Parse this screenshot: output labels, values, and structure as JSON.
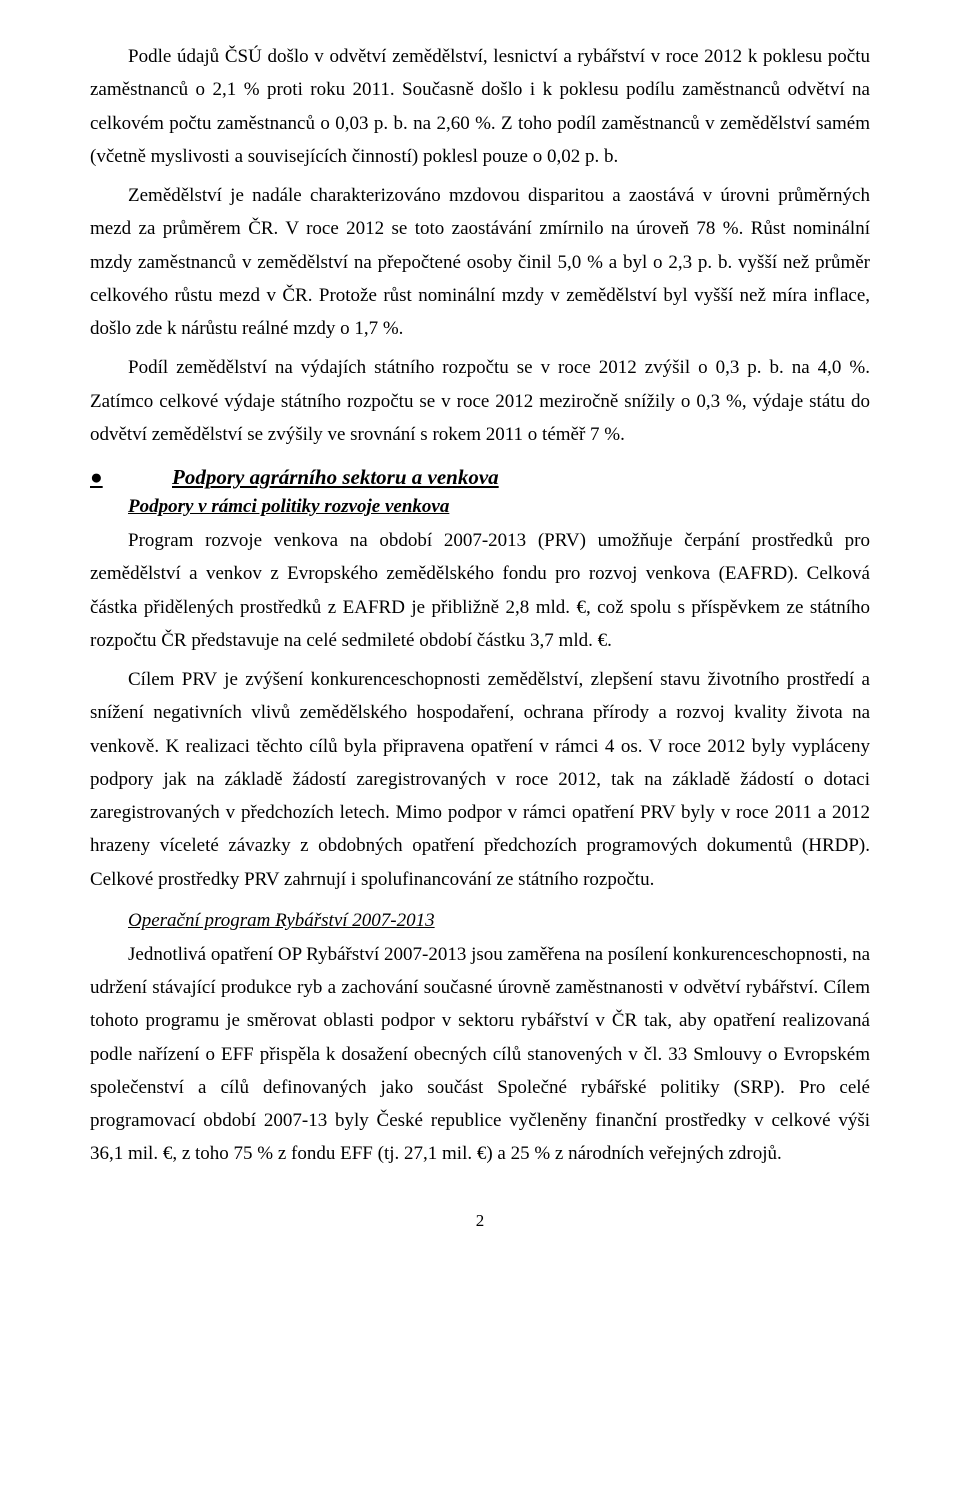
{
  "paragraphs": {
    "p1": "Podle údajů ČSÚ došlo v odvětví zemědělství, lesnictví a rybářství v roce 2012 k poklesu počtu zaměstnanců o 2,1 % proti roku 2011. Současně došlo i k poklesu podílu zaměstnanců odvětví na celkovém počtu zaměstnanců o 0,03 p. b. na 2,60 %. Z toho podíl zaměstnanců v zemědělství samém (včetně myslivosti a souvisejících činností) poklesl pouze o 0,02 p. b.",
    "p2": "Zemědělství je nadále charakterizováno mzdovou disparitou a zaostává v úrovni průměrných mezd za průměrem ČR. V roce 2012 se toto zaostávání zmírnilo na úroveň 78 %. Růst nominální mzdy zaměstnanců v zemědělství na přepočtené osoby činil 5,0 % a byl o 2,3 p. b. vyšší než průměr celkového růstu mezd v ČR. Protože růst nominální mzdy v zemědělství byl vyšší než míra inflace, došlo zde k nárůstu reálné mzdy o 1,7 %.",
    "p3": "Podíl zemědělství na výdajích státního rozpočtu se v roce 2012 zvýšil o 0,3 p. b. na 4,0 %. Zatímco celkové výdaje státního rozpočtu se v roce 2012 meziročně snížily o 0,3 %, výdaje státu do odvětví zemědělství se zvýšily ve srovnání s rokem 2011 o téměř 7 %.",
    "p4": "Program rozvoje venkova na období 2007-2013 (PRV) umožňuje čerpání prostředků pro zemědělství a venkov z Evropského zemědělského fondu pro rozvoj venkova (EAFRD). Celková částka přidělených prostředků z EAFRD je přibližně 2,8 mld. €, což spolu s příspěvkem ze státního rozpočtu ČR představuje na celé sedmileté období částku 3,7 mld. €.",
    "p5": "Cílem PRV je zvýšení konkurenceschopnosti zemědělství, zlepšení stavu životního prostředí a snížení negativních vlivů zemědělského hospodaření, ochrana přírody a rozvoj kvality života na venkově. K realizaci těchto cílů byla připravena opatření v rámci 4 os. V roce 2012 byly vypláceny podpory jak na základě žádostí zaregistrovaných v roce 2012, tak na základě žádostí o dotaci zaregistrovaných v předchozích letech. Mimo podpor v rámci opatření PRV byly v roce 2011 a 2012 hrazeny víceleté závazky z obdobných opatření předchozích programových dokumentů (HRDP). Celkové prostředky PRV zahrnují i spolufinancování ze státního rozpočtu.",
    "p6": "Jednotlivá opatření OP Rybářství 2007-2013 jsou zaměřena na posílení konkurenceschopnosti, na udržení stávající produkce ryb a zachování současné úrovně zaměstnanosti v odvětví rybářství. Cílem tohoto programu je směrovat oblasti podpor v sektoru rybářství v ČR tak, aby opatření realizovaná podle nařízení o EFF přispěla k dosažení obecných cílů stanovených v čl. 33 Smlouvy o Evropském společenství a cílů definovaných jako součást Společné rybářské politiky (SRP). Pro celé programovací období 2007-13 byly České republice vyčleněny finanční prostředky v celkové výši 36,1 mil. €, z toho 75 % z fondu EFF (tj. 27,1 mil. €) a 25 % z národních veřejných zdrojů."
  },
  "headings": {
    "section1_bullet": "●",
    "section1": "Podpory agrárního sektoru a venkova",
    "sub1": "Podpory v rámci politiky rozvoje venkova",
    "sub2": "Operační program Rybářství 2007-2013"
  },
  "page_number": "2",
  "colors": {
    "text": "#000000",
    "background": "#ffffff"
  },
  "typography": {
    "body_fontsize_pt": 14,
    "heading_fontsize_pt": 16,
    "font_family": "Times New Roman"
  }
}
